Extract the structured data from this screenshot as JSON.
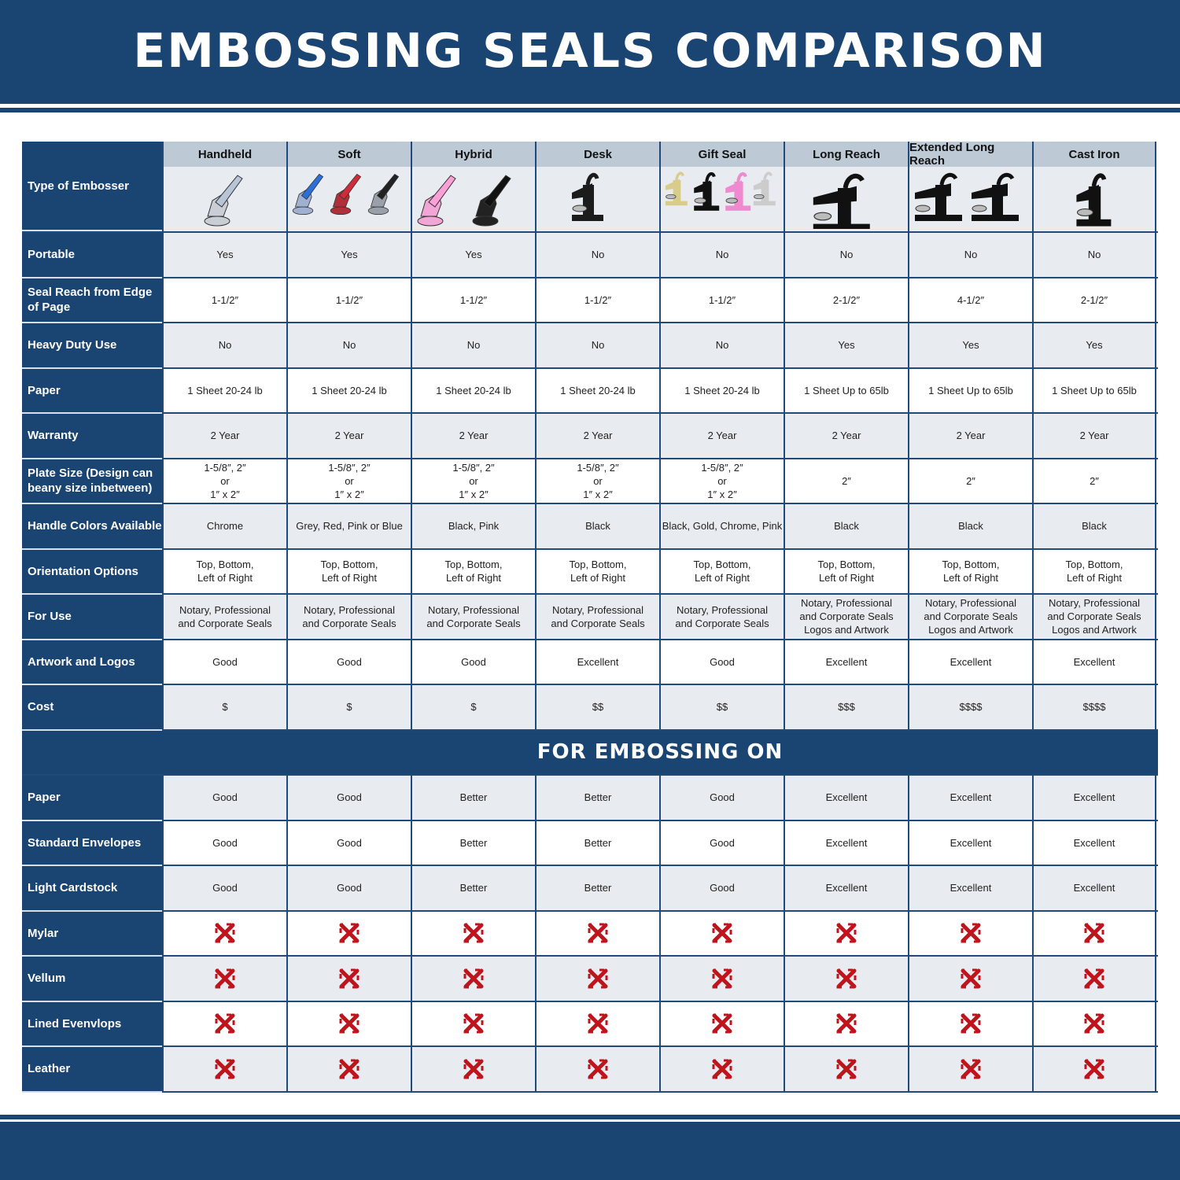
{
  "title": "EMBOSSING SEALS COMPARISON",
  "section_title": "FOR EMBOSSING ON",
  "colors": {
    "navy": "#1a4573",
    "header_grey": "#bdcad6",
    "row_grey": "#e8ecf0",
    "cross_red": "#c0141c"
  },
  "type_label": "Type of Embosser",
  "columns": [
    {
      "name": "Handheld",
      "image": "chrome-handheld-embosser"
    },
    {
      "name": "Soft",
      "image": "blue-red-black-soft-embossers"
    },
    {
      "name": "Hybrid",
      "image": "pink-black-hybrid-embossers"
    },
    {
      "name": "Desk",
      "image": "black-desk-embosser"
    },
    {
      "name": "Gift Seal",
      "image": "gold-black-pink-chrome-gift-seals"
    },
    {
      "name": "Long Reach",
      "image": "black-long-reach-embosser"
    },
    {
      "name": "Extended Long Reach",
      "image": "black-extended-long-reach-embossers"
    },
    {
      "name": "Cast Iron",
      "image": "black-cast-iron-embosser"
    }
  ],
  "rows": [
    {
      "label": "Portable",
      "values": [
        "Yes",
        "Yes",
        "Yes",
        "No",
        "No",
        "No",
        "No",
        "No"
      ]
    },
    {
      "label": "Seal Reach from Edge of Page",
      "values": [
        "1-1/2″",
        "1-1/2″",
        "1-1/2″",
        "1-1/2″",
        "1-1/2″",
        "2-1/2″",
        "4-1/2″",
        "2-1/2″"
      ]
    },
    {
      "label": "Heavy Duty Use",
      "values": [
        "No",
        "No",
        "No",
        "No",
        "No",
        "Yes",
        "Yes",
        "Yes"
      ]
    },
    {
      "label": "Paper",
      "values": [
        "1 Sheet 20-24 lb",
        "1 Sheet 20-24 lb",
        "1 Sheet 20-24 lb",
        "1 Sheet 20-24 lb",
        "1 Sheet 20-24 lb",
        "1 Sheet Up to 65lb",
        "1 Sheet Up to 65lb",
        "1 Sheet Up to 65lb"
      ]
    },
    {
      "label": "Warranty",
      "values": [
        "2 Year",
        "2 Year",
        "2 Year",
        "2 Year",
        "2 Year",
        "2 Year",
        "2 Year",
        "2 Year"
      ]
    },
    {
      "label": "Plate Size (Design can beany size inbetween)",
      "values": [
        "1-5/8″, 2″\nor\n1″ x 2″",
        "1-5/8″, 2″\nor\n1″ x 2″",
        "1-5/8″, 2″\nor\n1″ x 2″",
        "1-5/8″, 2″\nor\n1″ x 2″",
        "1-5/8″, 2″\nor\n1″ x 2″",
        "2″",
        "2″",
        "2″"
      ]
    },
    {
      "label": "Handle Colors Available",
      "values": [
        "Chrome",
        "Grey, Red, Pink or Blue",
        "Black, Pink",
        "Black",
        "Black, Gold, Chrome, Pink",
        "Black",
        "Black",
        "Black"
      ]
    },
    {
      "label": "Orientation Options",
      "values": [
        "Top, Bottom,\nLeft of Right",
        "Top, Bottom,\nLeft of Right",
        "Top, Bottom,\nLeft of Right",
        "Top, Bottom,\nLeft of Right",
        "Top, Bottom,\nLeft of Right",
        "Top, Bottom,\nLeft of Right",
        "Top, Bottom,\nLeft of Right",
        "Top, Bottom,\nLeft of Right"
      ]
    },
    {
      "label": "For Use",
      "values": [
        "Notary, Professional\nand Corporate Seals",
        "Notary, Professional\nand Corporate Seals",
        "Notary, Professional\nand Corporate Seals",
        "Notary, Professional\nand Corporate Seals",
        "Notary, Professional\nand Corporate Seals",
        "Notary, Professional\nand Corporate Seals\nLogos and Artwork",
        "Notary, Professional\nand Corporate Seals\nLogos and Artwork",
        "Notary, Professional\nand Corporate Seals\nLogos and Artwork"
      ]
    },
    {
      "label": "Artwork and Logos",
      "values": [
        "Good",
        "Good",
        "Good",
        "Excellent",
        "Good",
        "Excellent",
        "Excellent",
        "Excellent"
      ]
    },
    {
      "label": "Cost",
      "values": [
        "$",
        "$",
        "$",
        "$$",
        "$$",
        "$$$",
        "$$$$",
        "$$$$"
      ]
    }
  ],
  "embossing_rows": [
    {
      "label": "Paper",
      "values": [
        "Good",
        "Good",
        "Better",
        "Better",
        "Good",
        "Excellent",
        "Excellent",
        "Excellent"
      ]
    },
    {
      "label": "Standard Envelopes",
      "values": [
        "Good",
        "Good",
        "Better",
        "Better",
        "Good",
        "Excellent",
        "Excellent",
        "Excellent"
      ]
    },
    {
      "label": "Light Cardstock",
      "values": [
        "Good",
        "Good",
        "Better",
        "Better",
        "Good",
        "Excellent",
        "Excellent",
        "Excellent"
      ]
    },
    {
      "label": "Mylar",
      "icon": "red-x-icon"
    },
    {
      "label": "Vellum",
      "icon": "red-x-icon"
    },
    {
      "label": "Lined Evenvlops",
      "icon": "red-x-icon"
    },
    {
      "label": "Leather",
      "icon": "red-x-icon"
    }
  ]
}
